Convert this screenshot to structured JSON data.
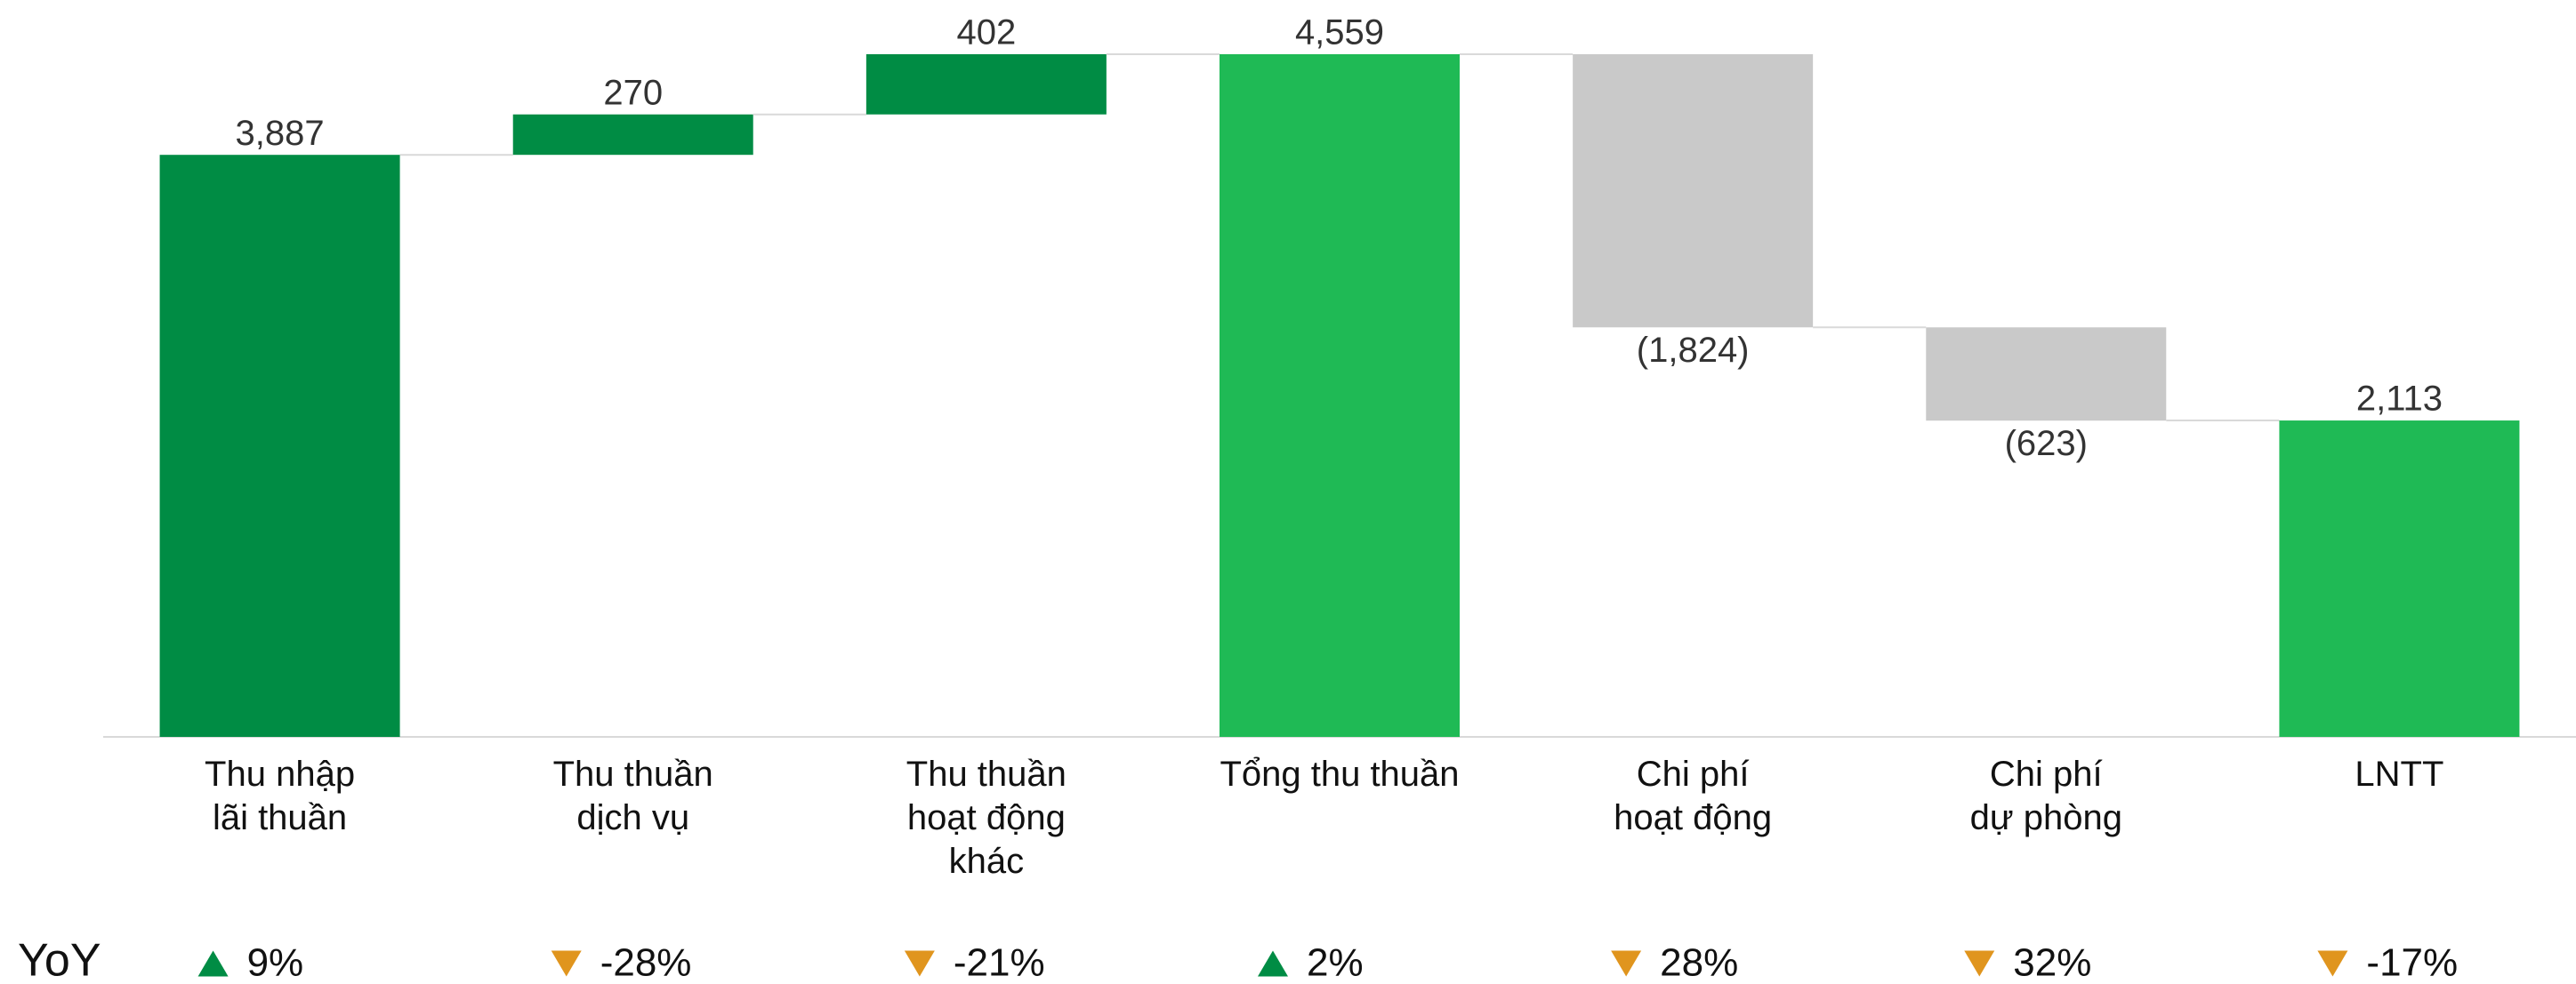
{
  "chart_data": {
    "type": "waterfall",
    "categories": [
      "Thu nhập\nlãi thuần",
      "Thu thuần\ndịch vụ",
      "Thu thuần\nhoạt động\nkhác",
      "Tổng thu thuần",
      "Chi phí\nhoạt động",
      "Chi phí\ndự phòng",
      "LNTT"
    ],
    "values": [
      3887,
      270,
      402,
      4559,
      -1824,
      -623,
      2113
    ],
    "value_labels": [
      "3,887",
      "270",
      "402",
      "4,559",
      "(1,824)",
      "(623)",
      "2,113"
    ],
    "kinds": [
      "delta",
      "delta",
      "delta",
      "total",
      "delta",
      "delta",
      "total"
    ],
    "colors": [
      "#008c44",
      "#008c44",
      "#008c44",
      "#1fba55",
      "#c9c9c9",
      "#c9c9c9",
      "#1fba55"
    ],
    "ylim": [
      0,
      4559
    ],
    "yoy": {
      "label": "YoY",
      "values": [
        9,
        -28,
        -21,
        2,
        28,
        32,
        -17
      ],
      "value_labels": [
        "9%",
        "-28%",
        "-21%",
        "2%",
        "28%",
        "32%",
        "-17%"
      ],
      "directions": [
        "up",
        "down",
        "down",
        "up",
        "down",
        "down",
        "down"
      ],
      "colors": {
        "up": "#008c44",
        "down": "#e0951e"
      }
    }
  }
}
